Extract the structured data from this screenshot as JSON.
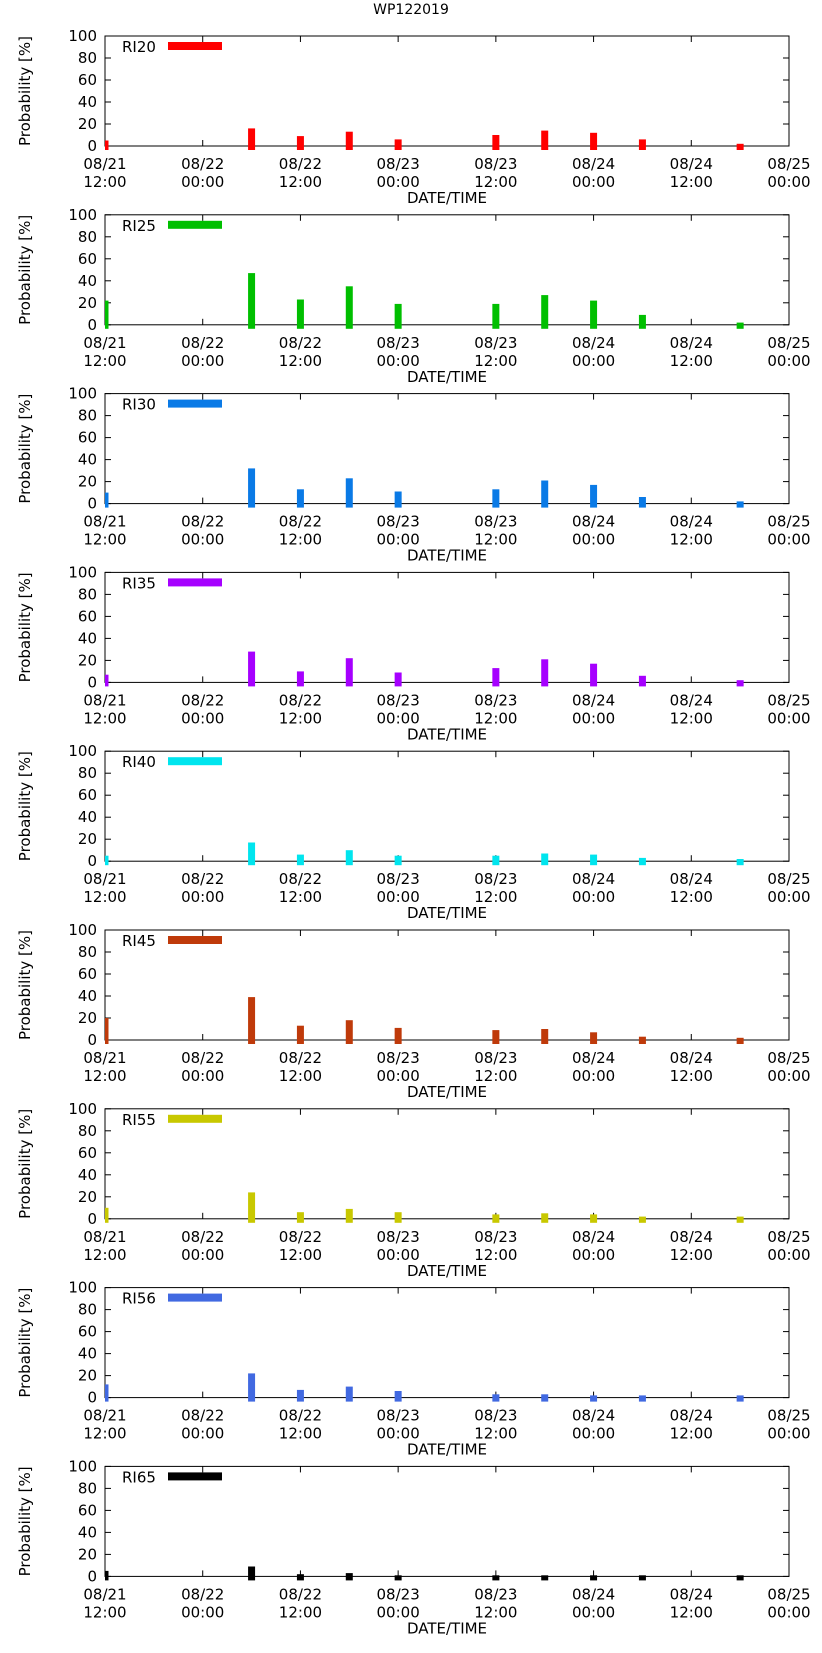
{
  "page_title": "WP122019",
  "chart_data": [
    {
      "type": "bar",
      "series_name": "RI20",
      "color": "#ff0000",
      "xlabel": "DATE/TIME",
      "ylabel": "Probability [%]",
      "ylim": [
        0,
        100
      ],
      "yticks": [
        0,
        20,
        40,
        60,
        80,
        100
      ],
      "xticks": [
        {
          "line1": "08/21",
          "line2": "12:00"
        },
        {
          "line1": "08/22",
          "line2": "00:00"
        },
        {
          "line1": "08/22",
          "line2": "12:00"
        },
        {
          "line1": "08/23",
          "line2": "00:00"
        },
        {
          "line1": "08/23",
          "line2": "12:00"
        },
        {
          "line1": "08/24",
          "line2": "00:00"
        },
        {
          "line1": "08/24",
          "line2": "12:00"
        },
        {
          "line1": "08/25",
          "line2": "00:00"
        }
      ],
      "x_hours": [
        0,
        18,
        24,
        30,
        36,
        48,
        54,
        60,
        66,
        78
      ],
      "values": [
        5,
        16,
        9,
        13,
        6,
        10,
        14,
        12,
        6,
        2
      ]
    },
    {
      "type": "bar",
      "series_name": "RI25",
      "color": "#00bf00",
      "xlabel": "DATE/TIME",
      "ylabel": "Probability [%]",
      "ylim": [
        0,
        100
      ],
      "yticks": [
        0,
        20,
        40,
        60,
        80,
        100
      ],
      "xticks": [
        {
          "line1": "08/21",
          "line2": "12:00"
        },
        {
          "line1": "08/22",
          "line2": "00:00"
        },
        {
          "line1": "08/22",
          "line2": "12:00"
        },
        {
          "line1": "08/23",
          "line2": "00:00"
        },
        {
          "line1": "08/23",
          "line2": "12:00"
        },
        {
          "line1": "08/24",
          "line2": "00:00"
        },
        {
          "line1": "08/24",
          "line2": "12:00"
        },
        {
          "line1": "08/25",
          "line2": "00:00"
        }
      ],
      "x_hours": [
        0,
        18,
        24,
        30,
        36,
        48,
        54,
        60,
        66,
        78
      ],
      "values": [
        22,
        47,
        23,
        35,
        19,
        19,
        27,
        22,
        9,
        2
      ]
    },
    {
      "type": "bar",
      "series_name": "RI30",
      "color": "#0a7ae6",
      "xlabel": "DATE/TIME",
      "ylabel": "Probability [%]",
      "ylim": [
        0,
        100
      ],
      "yticks": [
        0,
        20,
        40,
        60,
        80,
        100
      ],
      "xticks": [
        {
          "line1": "08/21",
          "line2": "12:00"
        },
        {
          "line1": "08/22",
          "line2": "00:00"
        },
        {
          "line1": "08/22",
          "line2": "12:00"
        },
        {
          "line1": "08/23",
          "line2": "00:00"
        },
        {
          "line1": "08/23",
          "line2": "12:00"
        },
        {
          "line1": "08/24",
          "line2": "00:00"
        },
        {
          "line1": "08/24",
          "line2": "12:00"
        },
        {
          "line1": "08/25",
          "line2": "00:00"
        }
      ],
      "x_hours": [
        0,
        18,
        24,
        30,
        36,
        48,
        54,
        60,
        66,
        78
      ],
      "values": [
        10,
        32,
        13,
        23,
        11,
        13,
        21,
        17,
        6,
        2
      ]
    },
    {
      "type": "bar",
      "series_name": "RI35",
      "color": "#a600ff",
      "xlabel": "DATE/TIME",
      "ylabel": "Probability [%]",
      "ylim": [
        0,
        100
      ],
      "yticks": [
        0,
        20,
        40,
        60,
        80,
        100
      ],
      "xticks": [
        {
          "line1": "08/21",
          "line2": "12:00"
        },
        {
          "line1": "08/22",
          "line2": "00:00"
        },
        {
          "line1": "08/22",
          "line2": "12:00"
        },
        {
          "line1": "08/23",
          "line2": "00:00"
        },
        {
          "line1": "08/23",
          "line2": "12:00"
        },
        {
          "line1": "08/24",
          "line2": "00:00"
        },
        {
          "line1": "08/24",
          "line2": "12:00"
        },
        {
          "line1": "08/25",
          "line2": "00:00"
        }
      ],
      "x_hours": [
        0,
        18,
        24,
        30,
        36,
        48,
        54,
        60,
        66,
        78
      ],
      "values": [
        7,
        28,
        10,
        22,
        9,
        13,
        21,
        17,
        6,
        2
      ]
    },
    {
      "type": "bar",
      "series_name": "RI40",
      "color": "#00e5ee",
      "xlabel": "DATE/TIME",
      "ylabel": "Probability [%]",
      "ylim": [
        0,
        100
      ],
      "yticks": [
        0,
        20,
        40,
        60,
        80,
        100
      ],
      "xticks": [
        {
          "line1": "08/21",
          "line2": "12:00"
        },
        {
          "line1": "08/22",
          "line2": "00:00"
        },
        {
          "line1": "08/22",
          "line2": "12:00"
        },
        {
          "line1": "08/23",
          "line2": "00:00"
        },
        {
          "line1": "08/23",
          "line2": "12:00"
        },
        {
          "line1": "08/24",
          "line2": "00:00"
        },
        {
          "line1": "08/24",
          "line2": "12:00"
        },
        {
          "line1": "08/25",
          "line2": "00:00"
        }
      ],
      "x_hours": [
        0,
        18,
        24,
        30,
        36,
        48,
        54,
        60,
        66,
        78
      ],
      "values": [
        5,
        17,
        6,
        10,
        5,
        5,
        7,
        6,
        3,
        2
      ]
    },
    {
      "type": "bar",
      "series_name": "RI45",
      "color": "#bf3a0a",
      "xlabel": "DATE/TIME",
      "ylabel": "Probability [%]",
      "ylim": [
        0,
        100
      ],
      "yticks": [
        0,
        20,
        40,
        60,
        80,
        100
      ],
      "xticks": [
        {
          "line1": "08/21",
          "line2": "12:00"
        },
        {
          "line1": "08/22",
          "line2": "00:00"
        },
        {
          "line1": "08/22",
          "line2": "12:00"
        },
        {
          "line1": "08/23",
          "line2": "00:00"
        },
        {
          "line1": "08/23",
          "line2": "12:00"
        },
        {
          "line1": "08/24",
          "line2": "00:00"
        },
        {
          "line1": "08/24",
          "line2": "12:00"
        },
        {
          "line1": "08/25",
          "line2": "00:00"
        }
      ],
      "x_hours": [
        0,
        18,
        24,
        30,
        36,
        48,
        54,
        60,
        66,
        78
      ],
      "values": [
        20,
        39,
        13,
        18,
        11,
        9,
        10,
        7,
        3,
        2
      ]
    },
    {
      "type": "bar",
      "series_name": "RI55",
      "color": "#c8c800",
      "xlabel": "DATE/TIME",
      "ylabel": "Probability [%]",
      "ylim": [
        0,
        100
      ],
      "yticks": [
        0,
        20,
        40,
        60,
        80,
        100
      ],
      "xticks": [
        {
          "line1": "08/21",
          "line2": "12:00"
        },
        {
          "line1": "08/22",
          "line2": "00:00"
        },
        {
          "line1": "08/22",
          "line2": "12:00"
        },
        {
          "line1": "08/23",
          "line2": "00:00"
        },
        {
          "line1": "08/23",
          "line2": "12:00"
        },
        {
          "line1": "08/24",
          "line2": "00:00"
        },
        {
          "line1": "08/24",
          "line2": "12:00"
        },
        {
          "line1": "08/25",
          "line2": "00:00"
        }
      ],
      "x_hours": [
        0,
        18,
        24,
        30,
        36,
        48,
        54,
        60,
        66,
        78
      ],
      "values": [
        10,
        24,
        6,
        9,
        6,
        4,
        5,
        4,
        2,
        2
      ]
    },
    {
      "type": "bar",
      "series_name": "RI56",
      "color": "#4169e1",
      "xlabel": "DATE/TIME",
      "ylabel": "Probability [%]",
      "ylim": [
        0,
        100
      ],
      "yticks": [
        0,
        20,
        40,
        60,
        80,
        100
      ],
      "xticks": [
        {
          "line1": "08/21",
          "line2": "12:00"
        },
        {
          "line1": "08/22",
          "line2": "00:00"
        },
        {
          "line1": "08/22",
          "line2": "12:00"
        },
        {
          "line1": "08/23",
          "line2": "00:00"
        },
        {
          "line1": "08/23",
          "line2": "12:00"
        },
        {
          "line1": "08/24",
          "line2": "00:00"
        },
        {
          "line1": "08/24",
          "line2": "12:00"
        },
        {
          "line1": "08/25",
          "line2": "00:00"
        }
      ],
      "x_hours": [
        0,
        18,
        24,
        30,
        36,
        48,
        54,
        60,
        66,
        78
      ],
      "values": [
        12,
        22,
        7,
        10,
        6,
        3,
        3,
        2,
        2,
        2
      ]
    },
    {
      "type": "bar",
      "series_name": "RI65",
      "color": "#000000",
      "xlabel": "DATE/TIME",
      "ylabel": "Probability [%]",
      "ylim": [
        0,
        100
      ],
      "yticks": [
        0,
        20,
        40,
        60,
        80,
        100
      ],
      "xticks": [
        {
          "line1": "08/21",
          "line2": "12:00"
        },
        {
          "line1": "08/22",
          "line2": "00:00"
        },
        {
          "line1": "08/22",
          "line2": "12:00"
        },
        {
          "line1": "08/23",
          "line2": "00:00"
        },
        {
          "line1": "08/23",
          "line2": "12:00"
        },
        {
          "line1": "08/24",
          "line2": "00:00"
        },
        {
          "line1": "08/24",
          "line2": "12:00"
        },
        {
          "line1": "08/25",
          "line2": "00:00"
        }
      ],
      "x_hours": [
        0,
        18,
        24,
        30,
        36,
        48,
        54,
        60,
        66,
        78
      ],
      "values": [
        5,
        9,
        2,
        3,
        1,
        1,
        1,
        1,
        1,
        1
      ]
    }
  ]
}
